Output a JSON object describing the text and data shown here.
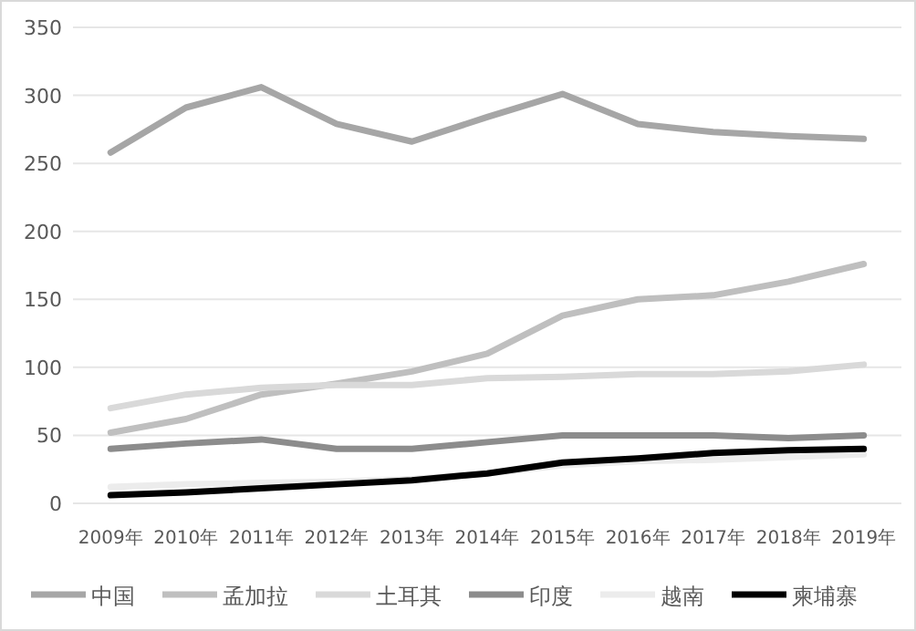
{
  "chart_data": {
    "type": "line",
    "categories": [
      "2009年",
      "2010年",
      "2011年",
      "2012年",
      "2013年",
      "2014年",
      "2015年",
      "2016年",
      "2017年",
      "2018年",
      "2019年"
    ],
    "series": [
      {
        "name": "中国",
        "color": "#a6a6a6",
        "values": [
          258,
          291,
          306,
          279,
          266,
          284,
          301,
          279,
          273,
          270,
          268
        ]
      },
      {
        "name": "孟加拉",
        "color": "#bfbfbf",
        "values": [
          52,
          62,
          80,
          88,
          97,
          110,
          138,
          150,
          153,
          163,
          176
        ]
      },
      {
        "name": "土耳其",
        "color": "#d9d9d9",
        "values": [
          70,
          80,
          85,
          87,
          87,
          92,
          93,
          95,
          95,
          97,
          102
        ]
      },
      {
        "name": "印度",
        "color": "#8c8c8c",
        "values": [
          40,
          44,
          47,
          40,
          40,
          45,
          50,
          50,
          50,
          48,
          50
        ]
      },
      {
        "name": "越南",
        "color": "#ececec",
        "values": [
          12,
          14,
          15,
          16,
          18,
          22,
          28,
          31,
          32,
          34,
          36
        ]
      },
      {
        "name": "柬埔寨",
        "color": "#000000",
        "values": [
          6,
          8,
          11,
          14,
          17,
          22,
          30,
          33,
          37,
          39,
          40
        ]
      }
    ],
    "ylim": [
      0,
      350
    ],
    "yticks": [
      0,
      50,
      100,
      150,
      200,
      250,
      300,
      350
    ],
    "grid": "y",
    "legend": "bottom",
    "marker": "none",
    "line_style": "solid"
  }
}
